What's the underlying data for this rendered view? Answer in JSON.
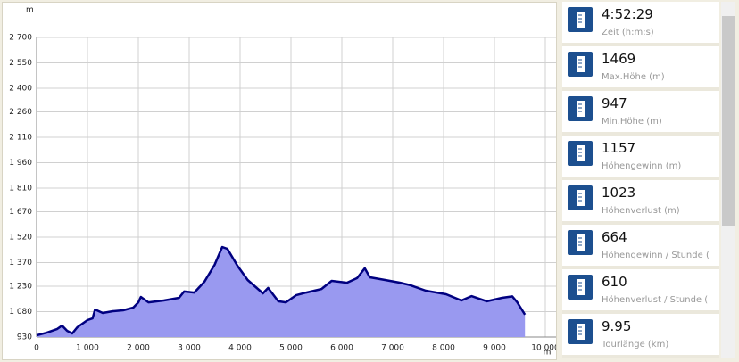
{
  "chart_data": {
    "type": "area",
    "y_label": "m",
    "x_label": "m",
    "x": [
      0,
      200,
      400,
      500,
      600,
      700,
      800,
      900,
      1000,
      1100,
      1150,
      1300,
      1500,
      1700,
      1900,
      2000,
      2050,
      2200,
      2500,
      2800,
      2900,
      3100,
      3300,
      3500,
      3650,
      3750,
      3950,
      4150,
      4450,
      4550,
      4750,
      4900,
      5100,
      5300,
      5600,
      5800,
      6100,
      6300,
      6450,
      6550,
      6850,
      7150,
      7350,
      7650,
      8050,
      8350,
      8550,
      8850,
      9150,
      9350,
      9450,
      9600
    ],
    "values": [
      940,
      956,
      977,
      998,
      967,
      951,
      988,
      1009,
      1030,
      1040,
      1093,
      1072,
      1083,
      1088,
      1104,
      1135,
      1167,
      1135,
      1146,
      1162,
      1199,
      1193,
      1257,
      1357,
      1462,
      1451,
      1351,
      1267,
      1188,
      1220,
      1141,
      1135,
      1177,
      1193,
      1214,
      1262,
      1251,
      1278,
      1336,
      1283,
      1267,
      1251,
      1236,
      1204,
      1183,
      1146,
      1172,
      1141,
      1162,
      1170,
      1135,
      1062
    ],
    "color": "#000080",
    "fill": "#9999f0",
    "xlim": [
      0,
      10000
    ],
    "xticks": [
      0,
      {
        "value": 1000,
        "label": "1 000"
      },
      {
        "value": 2000,
        "label": "2 000"
      },
      {
        "value": 3000,
        "label": "3 000"
      },
      {
        "value": 4000,
        "label": "4 000"
      },
      {
        "value": 5000,
        "label": "5 000"
      },
      {
        "value": 6000,
        "label": "6 000"
      },
      {
        "value": 7000,
        "label": "7 000"
      },
      {
        "value": 8000,
        "label": "8 000"
      },
      {
        "value": 9000,
        "label": "9 000"
      },
      {
        "value": 10000,
        "label": "10 000"
      }
    ],
    "ylim": [
      930,
      2700
    ],
    "yticks": [
      930,
      {
        "value": 1080,
        "label": "1 080"
      },
      {
        "value": 1230,
        "label": "1 230"
      },
      {
        "value": 1370,
        "label": "1 370"
      },
      {
        "value": 1520,
        "label": "1 520"
      },
      {
        "value": 1670,
        "label": "1 670"
      },
      {
        "value": 1810,
        "label": "1 810"
      },
      {
        "value": 1960,
        "label": "1 960"
      },
      {
        "value": 2110,
        "label": "2 110"
      },
      {
        "value": 2260,
        "label": "2 260"
      },
      {
        "value": 2400,
        "label": "2 400"
      },
      {
        "value": 2550,
        "label": "2 550"
      },
      {
        "value": 2700,
        "label": "2 700"
      }
    ],
    "grid": true
  },
  "stats": [
    {
      "value": "4:52:29",
      "label": "Zeit (h:m:s)"
    },
    {
      "value": "1469",
      "label": "Max.Höhe (m)"
    },
    {
      "value": "947",
      "label": "Min.Höhe (m)"
    },
    {
      "value": "1157",
      "label": "Höhengewinn (m)"
    },
    {
      "value": "1023",
      "label": "Höhenverlust (m)"
    },
    {
      "value": "664",
      "label": "Höhengewinn  /  Stunde ("
    },
    {
      "value": "610",
      "label": "Höhenverlust  /  Stunde ("
    },
    {
      "value": "9.95",
      "label": "Tourlänge (km)"
    }
  ]
}
